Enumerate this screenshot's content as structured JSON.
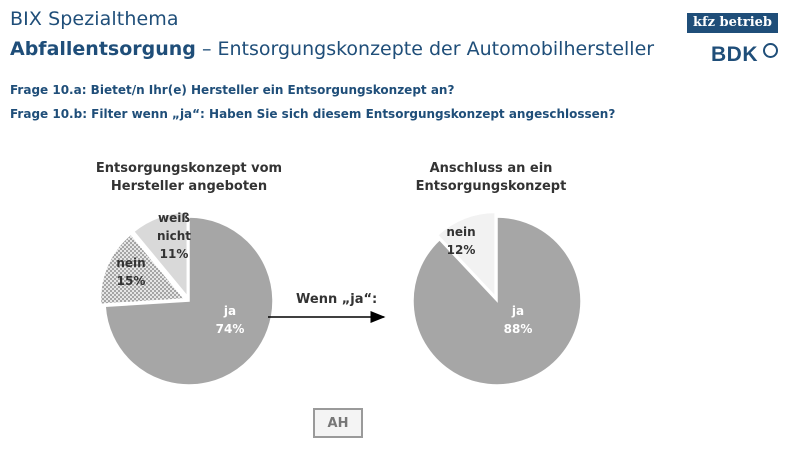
{
  "header": {
    "title": "BIX Spezialthema",
    "subtitle_bold": "Abfallentsorgung",
    "subtitle_rest": " – Entsorgungskonzepte der Automobilhersteller"
  },
  "logos": {
    "kfz": "kfz betrieb",
    "bdk": "BDK"
  },
  "questions": [
    "Frage 10.a: Bietet/n Ihr(e) Hersteller ein Entsorgungskonzept an?",
    "Frage 10.b: Filter wenn „ja“: Haben Sie sich diesem Entsorgungskonzept angeschlossen?"
  ],
  "connector_label": "Wenn „ja“:",
  "footer_box": "AH",
  "colors": {
    "ja": "#a6a6a6",
    "nein_pattern": "#8c8c8c",
    "weiss_nicht": "#d9d9d9",
    "nein_light": "#f2f2f2",
    "text_dark": "#333333",
    "text_white": "#ffffff"
  },
  "chart_data": [
    {
      "type": "pie",
      "title_lines": [
        "Entsorgungskonzept vom",
        "Hersteller angeboten"
      ],
      "slices": [
        {
          "name": "ja",
          "value": 74,
          "label_lines": [
            "ja",
            "74%"
          ]
        },
        {
          "name": "nein",
          "value": 15,
          "label_lines": [
            "nein",
            "15%"
          ]
        },
        {
          "name": "weiß nicht",
          "value": 11,
          "label_lines": [
            "weiß",
            "nicht",
            "11%"
          ]
        }
      ],
      "exploded": [
        "nein",
        "weiß nicht"
      ]
    },
    {
      "type": "pie",
      "title_lines": [
        "Anschluss an ein",
        "Entsorgungskonzept"
      ],
      "slices": [
        {
          "name": "ja",
          "value": 88,
          "label_lines": [
            "ja",
            "88%"
          ]
        },
        {
          "name": "nein",
          "value": 12,
          "label_lines": [
            "nein",
            "12%"
          ]
        }
      ],
      "exploded": [
        "nein"
      ]
    }
  ]
}
